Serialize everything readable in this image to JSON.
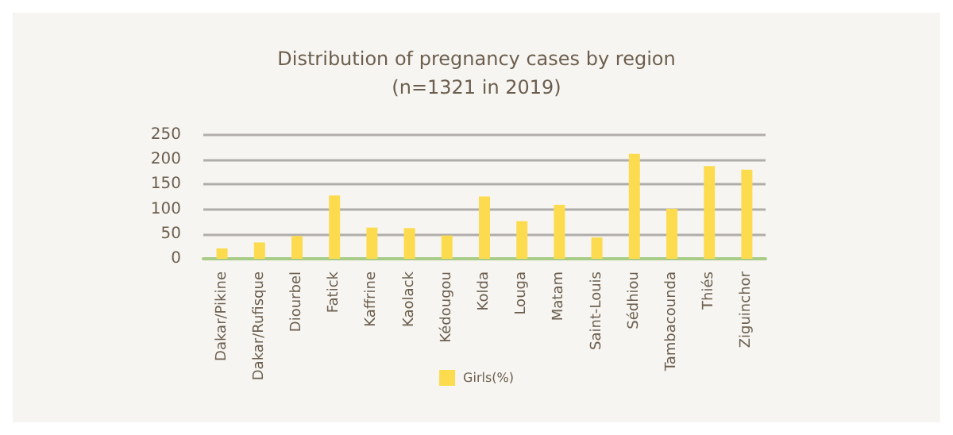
{
  "chart_data": {
    "type": "bar",
    "title": "Distribution of pregnancy cases by region",
    "subtitle": "(n=1321 in 2019)",
    "categories": [
      "Dakar/Pikine",
      "Dakar/Rufisque",
      "Diourbel",
      "Fatick",
      "Kaffrine",
      "Kaolack",
      "Kédougou",
      "Kolda",
      "Louga",
      "Matam",
      "Saint-Louis",
      "Sédhiou",
      "Tambacounda",
      "Thiés",
      "Ziguinchor"
    ],
    "series": [
      {
        "name": "Girls(%)",
        "color": "#fddb4e",
        "values": [
          21,
          33,
          46,
          128,
          63,
          62,
          47,
          126,
          76,
          109,
          43,
          212,
          101,
          187,
          180
        ]
      }
    ],
    "ylim": [
      0,
      250
    ],
    "yticks": [
      0,
      50,
      100,
      150,
      200,
      250
    ],
    "grid": "y",
    "legend": "bottom"
  }
}
